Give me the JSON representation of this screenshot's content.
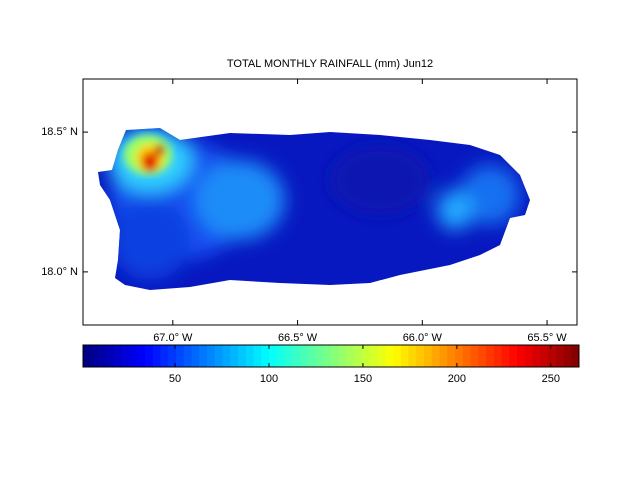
{
  "title": "TOTAL MONTHLY RAINFALL (mm) Jun12",
  "map": {
    "lonlim": [
      -67.36,
      -65.38
    ],
    "latlim": [
      17.81,
      18.69
    ],
    "lon_ticks": [
      {
        "value": -67.0,
        "label": "67.0° W"
      },
      {
        "value": -66.5,
        "label": "66.5° W"
      },
      {
        "value": -66.0,
        "label": "66.0° W"
      },
      {
        "value": -65.5,
        "label": "65.5° W"
      }
    ],
    "lat_ticks": [
      {
        "value": 18.0,
        "label": "18.0° N"
      },
      {
        "value": 18.5,
        "label": "18.5° N"
      }
    ]
  },
  "colorbar": {
    "lim": [
      1,
      265
    ],
    "ticks": [
      50,
      100,
      150,
      200,
      250
    ]
  }
}
